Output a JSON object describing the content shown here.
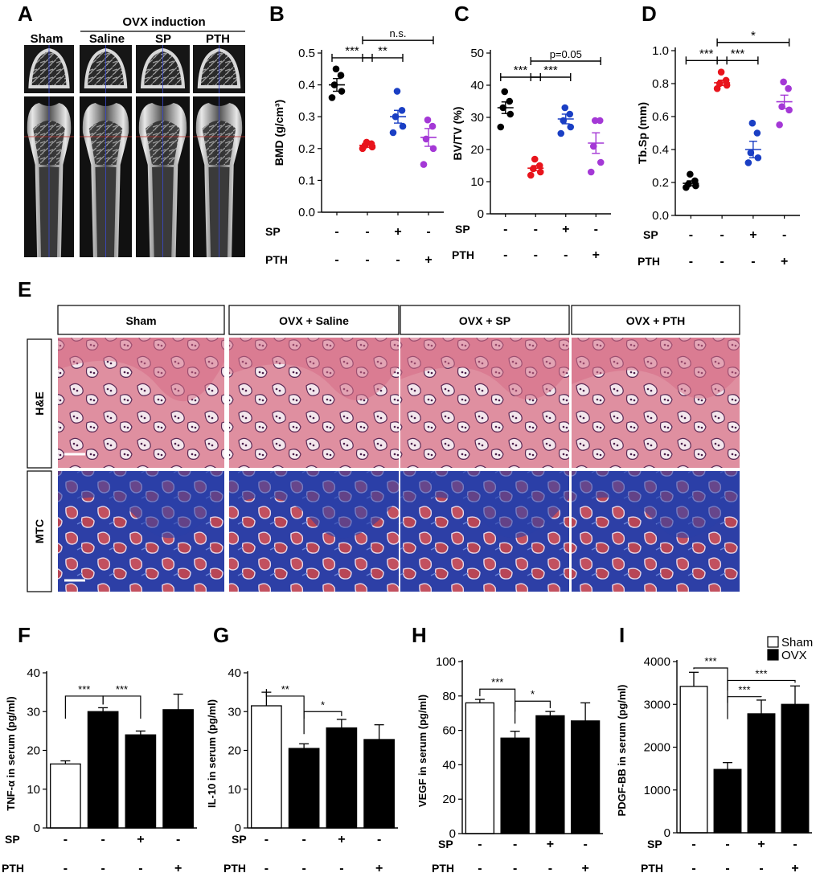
{
  "panel_letters": [
    "A",
    "B",
    "C",
    "D",
    "E",
    "F",
    "G",
    "H",
    "I"
  ],
  "panel_a": {
    "group_label": "OVX induction",
    "labels": [
      "Sham",
      "Saline",
      "SP",
      "PTH"
    ]
  },
  "panel_e": {
    "column_labels": [
      "Sham",
      "OVX + Saline",
      "OVX + SP",
      "OVX + PTH"
    ],
    "row_labels": [
      "H&E",
      "MTC"
    ]
  },
  "row_labels": {
    "sp": "SP",
    "pth": "PTH"
  },
  "treatment_signs": {
    "sp": [
      "-",
      "-",
      "+",
      "-"
    ],
    "pth": [
      "-",
      "-",
      "-",
      "+"
    ]
  },
  "colors": {
    "sham": "#000000",
    "saline": "#e8141c",
    "sp": "#1a3fc4",
    "pth": "#a438d6",
    "he_bg": "#e09aa8",
    "he_tissue": "#d66d86",
    "mtc_bg": "#2a3fa8",
    "mtc_cell": "#b8505e"
  },
  "chart_data": [
    {
      "id": "B",
      "type": "scatter",
      "ylabel": "BMD (g/cm³)",
      "ylim": [
        0.0,
        0.5
      ],
      "yticks": [
        "0.0",
        "0.1",
        "0.2",
        "0.3",
        "0.4",
        "0.5"
      ],
      "groups": [
        {
          "points": [
            0.36,
            0.38,
            0.4,
            0.43,
            0.45
          ],
          "mean": 0.4,
          "sem": 0.02
        },
        {
          "points": [
            0.2,
            0.205,
            0.21,
            0.215,
            0.22
          ],
          "mean": 0.21,
          "sem": 0.006
        },
        {
          "points": [
            0.25,
            0.27,
            0.3,
            0.32,
            0.38
          ],
          "mean": 0.3,
          "sem": 0.02
        },
        {
          "points": [
            0.15,
            0.2,
            0.23,
            0.27,
            0.29
          ],
          "mean": 0.235,
          "sem": 0.028
        }
      ],
      "sig": [
        {
          "from": 0,
          "to": 1,
          "label": "***",
          "y": 0.485
        },
        {
          "from": 1,
          "to": 2,
          "label": "**",
          "y": 0.485
        },
        {
          "from": 1,
          "to": 3,
          "label": "n.s.",
          "y": 0.54
        }
      ]
    },
    {
      "id": "C",
      "type": "scatter",
      "ylabel": "BV/TV (%)",
      "ylim": [
        0,
        50
      ],
      "yticks": [
        "0",
        "10",
        "20",
        "30",
        "40",
        "50"
      ],
      "groups": [
        {
          "points": [
            27,
            31,
            33,
            35,
            38
          ],
          "mean": 33,
          "sem": 1.8
        },
        {
          "points": [
            12,
            13,
            14,
            15,
            17
          ],
          "mean": 14.2,
          "sem": 0.8
        },
        {
          "points": [
            25,
            27,
            29,
            31,
            33
          ],
          "mean": 29.5,
          "sem": 1.5
        },
        {
          "points": [
            13,
            16,
            21,
            29,
            29
          ],
          "mean": 22,
          "sem": 3.2
        }
      ],
      "sig": [
        {
          "from": 0,
          "to": 1,
          "label": "***",
          "y": 42.5
        },
        {
          "from": 1,
          "to": 2,
          "label": "***",
          "y": 42.5
        },
        {
          "from": 1,
          "to": 3,
          "label": "p=0.05",
          "y": 47.5
        }
      ]
    },
    {
      "id": "D",
      "type": "scatter",
      "ylabel": "Tb.Sp (mm)",
      "ylim": [
        0.0,
        1.0
      ],
      "yticks": [
        "0.0",
        "0.2",
        "0.4",
        "0.6",
        "0.8",
        "1.0"
      ],
      "groups": [
        {
          "points": [
            0.17,
            0.18,
            0.19,
            0.21,
            0.25
          ],
          "mean": 0.195,
          "sem": 0.015
        },
        {
          "points": [
            0.77,
            0.79,
            0.8,
            0.82,
            0.87
          ],
          "mean": 0.805,
          "sem": 0.016
        },
        {
          "points": [
            0.32,
            0.35,
            0.38,
            0.5,
            0.56
          ],
          "mean": 0.4,
          "sem": 0.05
        },
        {
          "points": [
            0.55,
            0.64,
            0.66,
            0.77,
            0.81
          ],
          "mean": 0.69,
          "sem": 0.04
        }
      ],
      "sig": [
        {
          "from": 0,
          "to": 1,
          "label": "***",
          "y": 0.94
        },
        {
          "from": 1,
          "to": 2,
          "label": "***",
          "y": 0.94
        },
        {
          "from": 1,
          "to": 3,
          "label": "*",
          "y": 1.05
        }
      ]
    },
    {
      "id": "F",
      "type": "bar",
      "ylabel": "TNF-α in serum (pg/ml)",
      "ylim": [
        0,
        40
      ],
      "yticks": [
        "0",
        "10",
        "20",
        "30",
        "40"
      ],
      "values": [
        16.5,
        30,
        24,
        30.5
      ],
      "errors": [
        0.8,
        1,
        1,
        4
      ],
      "fills": [
        "sham",
        "ovx",
        "ovx",
        "ovx"
      ],
      "sig": [
        {
          "from": 0,
          "to": 1,
          "label": "***",
          "y": 34
        },
        {
          "from": 1,
          "to": 2,
          "label": "***",
          "y": 34
        }
      ]
    },
    {
      "id": "G",
      "type": "bar",
      "ylabel": "IL-10 in serum (pg/ml)",
      "ylim": [
        0,
        40
      ],
      "yticks": [
        "0",
        "10",
        "20",
        "30",
        "40"
      ],
      "values": [
        31.5,
        20.5,
        25.8,
        22.8
      ],
      "errors": [
        3.5,
        1.2,
        2.2,
        3.8
      ],
      "fills": [
        "sham",
        "ovx",
        "ovx",
        "ovx"
      ],
      "sig": [
        {
          "from": 0,
          "to": 1,
          "label": "**",
          "y": 34
        },
        {
          "from": 1,
          "to": 2,
          "label": "*",
          "y": 30
        }
      ]
    },
    {
      "id": "H",
      "type": "bar",
      "ylabel": "VEGF in serum (pg/ml)",
      "ylim": [
        0,
        100
      ],
      "yticks": [
        "0",
        "20",
        "40",
        "60",
        "80",
        "100"
      ],
      "values": [
        76,
        55.5,
        68.5,
        65.5
      ],
      "errors": [
        2,
        4,
        2.5,
        10.5
      ],
      "fills": [
        "sham",
        "ovx",
        "ovx",
        "ovx"
      ],
      "sig": [
        {
          "from": 0,
          "to": 1,
          "label": "***",
          "y": 84
        },
        {
          "from": 1,
          "to": 2,
          "label": "*",
          "y": 77
        }
      ]
    },
    {
      "id": "I",
      "type": "bar",
      "ylabel": "PDGF-BB in serum (pg/ml)",
      "ylim": [
        0,
        4000
      ],
      "yticks": [
        "0",
        "1000",
        "2000",
        "3000",
        "4000"
      ],
      "values": [
        3420,
        1480,
        2780,
        3000
      ],
      "errors": [
        330,
        160,
        320,
        430
      ],
      "fills": [
        "sham",
        "ovx",
        "ovx",
        "ovx"
      ],
      "legend": [
        {
          "label": "Sham",
          "fill": "sham"
        },
        {
          "label": "OVX",
          "fill": "ovx"
        }
      ],
      "legend_position": "top-right",
      "sig": [
        {
          "from": 0,
          "to": 1,
          "label": "***",
          "y": 3850
        },
        {
          "from": 1,
          "to": 2,
          "label": "***",
          "y": 3180
        },
        {
          "from": 1,
          "to": 3,
          "label": "***",
          "y": 3560
        }
      ]
    }
  ]
}
